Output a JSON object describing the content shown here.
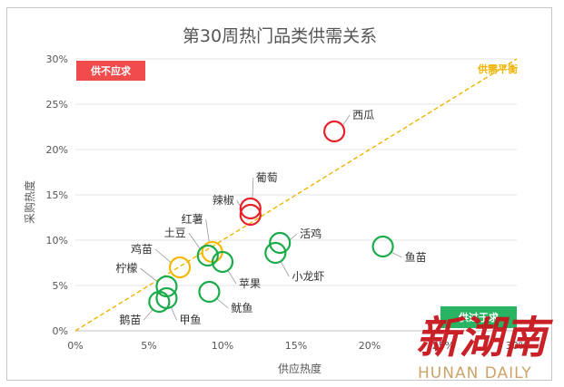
{
  "chart_data": {
    "type": "scatter",
    "title": "第30周热门品类供需关系",
    "xlabel": "供应热度",
    "ylabel": "采购热度",
    "xlim": [
      0,
      30
    ],
    "ylim": [
      0,
      30
    ],
    "x_ticks": [
      "0%",
      "5%",
      "10%",
      "15%",
      "20%",
      "25%",
      "30%"
    ],
    "y_ticks": [
      "0%",
      "5%",
      "10%",
      "15%",
      "20%",
      "25%",
      "30%"
    ],
    "grid": "horizontal",
    "reference_line": {
      "label": "供需平衡",
      "from": [
        0,
        0
      ],
      "to": [
        30,
        30
      ],
      "color": "#f0b400"
    },
    "badges": {
      "top_left": "供不应求",
      "bottom_right": "供过于求"
    },
    "status_colors": {
      "demand_exceeds": "#e8202a",
      "balanced": "#f5b800",
      "supply_exceeds": "#1aab4a"
    },
    "points": [
      {
        "name": "西瓜",
        "x": 17.6,
        "y": 22.0,
        "status": "demand_exceeds"
      },
      {
        "name": "葡萄",
        "x": 11.9,
        "y": 13.5,
        "status": "demand_exceeds"
      },
      {
        "name": "辣椒",
        "x": 11.9,
        "y": 12.8,
        "status": "demand_exceeds"
      },
      {
        "name": "红薯",
        "x": 9.3,
        "y": 8.7,
        "status": "balanced"
      },
      {
        "name": "土豆",
        "x": 9.0,
        "y": 8.3,
        "status": "supply_exceeds"
      },
      {
        "name": "鸡苗",
        "x": 7.1,
        "y": 7.0,
        "status": "balanced"
      },
      {
        "name": "苹果",
        "x": 10.0,
        "y": 7.6,
        "status": "supply_exceeds"
      },
      {
        "name": "活鸡",
        "x": 13.9,
        "y": 9.7,
        "status": "supply_exceeds"
      },
      {
        "name": "小龙虾",
        "x": 13.6,
        "y": 8.6,
        "status": "supply_exceeds"
      },
      {
        "name": "鱼苗",
        "x": 20.9,
        "y": 9.3,
        "status": "supply_exceeds"
      },
      {
        "name": "柠檬",
        "x": 6.2,
        "y": 4.9,
        "status": "supply_exceeds"
      },
      {
        "name": "鱿鱼",
        "x": 9.1,
        "y": 4.3,
        "status": "supply_exceeds"
      },
      {
        "name": "甲鱼",
        "x": 6.2,
        "y": 3.6,
        "status": "supply_exceeds"
      },
      {
        "name": "鹅苗",
        "x": 5.7,
        "y": 3.2,
        "status": "supply_exceeds"
      }
    ]
  },
  "watermark": {
    "cn": "新湖南",
    "en": "HUNAN DAILY"
  }
}
